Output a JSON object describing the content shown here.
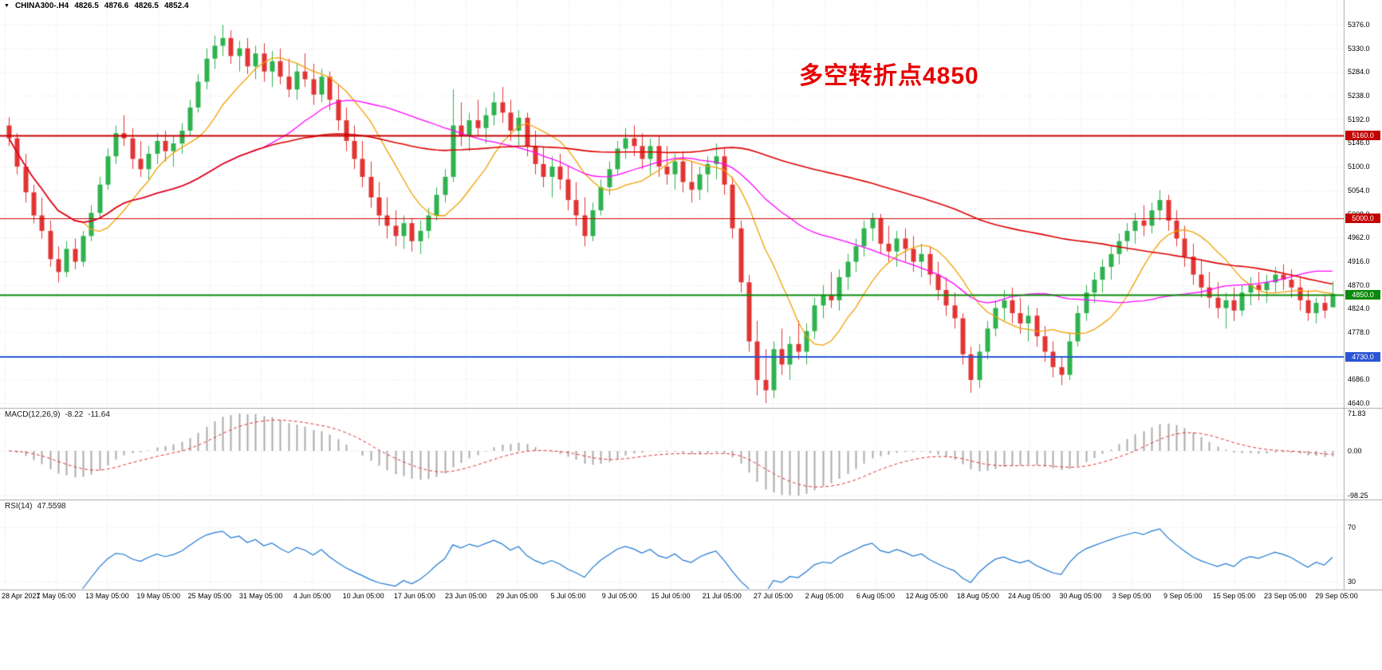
{
  "symbol_bar": {
    "icon": "▼",
    "symbol": "CHINA300-.H4",
    "open": "4826.5",
    "high": "4876.6",
    "low": "4826.5",
    "close": "4852.4"
  },
  "annotation": {
    "text": "多空转折点4850",
    "color": "#e60000"
  },
  "panes": {
    "macd": {
      "label": "MACD(12,26,9)",
      "value_main": "-8.22",
      "value_signal": "-11.64",
      "axis": [
        "71.83",
        "0.00",
        "-98.25"
      ]
    },
    "rsi": {
      "label": "RSI(14)",
      "value": "47.5598",
      "axis": [
        "70",
        "30"
      ],
      "levels": [
        70,
        30
      ]
    }
  },
  "price_axis": {
    "labels": [
      "5376.0",
      "5330.0",
      "5284.0",
      "5238.0",
      "5192.0",
      "5146.0",
      "5100.0",
      "5054.0",
      "5008.0",
      "4962.0",
      "4916.0",
      "4870.0",
      "4824.0",
      "4778.0",
      "4732.0",
      "4686.0",
      "4640.0"
    ]
  },
  "hlines": [
    {
      "price": 5160.0,
      "label": "5160.0",
      "color": "#c40000",
      "width": 2
    },
    {
      "price": 5000.0,
      "label": "5000.0",
      "color": "#c40000",
      "width": 1
    },
    {
      "price": 4850.0,
      "label": "4850.0",
      "color": "#0a8a0a",
      "width": 2
    },
    {
      "price": 4730.0,
      "label": "4730.0",
      "color": "#2b55d4",
      "width": 2
    }
  ],
  "time_axis": {
    "labels": [
      "28 Apr 2021",
      "7 May 05:00",
      "13 May 05:00",
      "19 May 05:00",
      "25 May 05:00",
      "31 May 05:00",
      "4 Jun 05:00",
      "10 Jun 05:00",
      "17 Jun 05:00",
      "23 Jun 05:00",
      "29 Jun 05:00",
      "5 Jul 05:00",
      "9 Jul 05:00",
      "15 Jul 05:00",
      "21 Jul 05:00",
      "27 Jul 05:00",
      "2 Aug 05:00",
      "6 Aug 05:00",
      "12 Aug 05:00",
      "18 Aug 05:00",
      "24 Aug 05:00",
      "30 Aug 05:00",
      "3 Sep 05:00",
      "9 Sep 05:00",
      "15 Sep 05:00",
      "23 Sep 05:00",
      "29 Sep 05:00"
    ]
  },
  "colors": {
    "up_candle": "#2eb24e",
    "down_candle": "#e23434",
    "ma_fast": "#f0a000",
    "ma_mid": "#ff00ff",
    "ma_slow": "#dc0000",
    "macd_histogram": "#ababab",
    "macd_signal": "#e03030",
    "rsi_line": "#1e78d2",
    "grid": "#e3e3e3",
    "separator": "#a9a9a9"
  },
  "chart_data": {
    "type": "candlestick",
    "symbol": "CHINA300-",
    "timeframe": "H4",
    "title": "CHINA300-.H4 4826.5 4876.6 4826.5 4852.4",
    "x_range": [
      "28 Apr 2021",
      "29 Sep 2021"
    ],
    "ylim": [
      4640,
      5376
    ],
    "price_step": 46,
    "moving_averages": [
      {
        "period": 10,
        "color": "#f0a000"
      },
      {
        "period": 30,
        "color": "#ff00ff"
      },
      {
        "period": 80,
        "color": "#dc0000"
      }
    ],
    "indicators": {
      "macd": {
        "fast": 12,
        "slow": 26,
        "signal": 9,
        "current_main": -8.22,
        "current_signal": -11.64,
        "axis_max": 71.83,
        "axis_min": -98.25
      },
      "rsi": {
        "period": 14,
        "current": 47.5598,
        "levels": [
          70,
          30
        ]
      }
    },
    "ohlc": [
      [
        5180,
        5196,
        5140,
        5155
      ],
      [
        5155,
        5165,
        5085,
        5100
      ],
      [
        5100,
        5125,
        5030,
        5050
      ],
      [
        5050,
        5065,
        4990,
        5005
      ],
      [
        5005,
        5040,
        4960,
        4975
      ],
      [
        4975,
        4995,
        4905,
        4920
      ],
      [
        4920,
        4945,
        4875,
        4895
      ],
      [
        4895,
        4955,
        4885,
        4940
      ],
      [
        4940,
        4960,
        4900,
        4915
      ],
      [
        4915,
        4975,
        4905,
        4965
      ],
      [
        4965,
        5025,
        4955,
        5010
      ],
      [
        5010,
        5080,
        5000,
        5065
      ],
      [
        5065,
        5135,
        5055,
        5120
      ],
      [
        5120,
        5180,
        5105,
        5165
      ],
      [
        5165,
        5200,
        5140,
        5155
      ],
      [
        5155,
        5175,
        5095,
        5115
      ],
      [
        5115,
        5150,
        5080,
        5095
      ],
      [
        5095,
        5140,
        5075,
        5125
      ],
      [
        5125,
        5165,
        5105,
        5150
      ],
      [
        5150,
        5170,
        5110,
        5130
      ],
      [
        5130,
        5160,
        5100,
        5145
      ],
      [
        5145,
        5185,
        5125,
        5170
      ],
      [
        5170,
        5230,
        5160,
        5215
      ],
      [
        5215,
        5280,
        5205,
        5265
      ],
      [
        5265,
        5330,
        5250,
        5310
      ],
      [
        5310,
        5355,
        5290,
        5335
      ],
      [
        5335,
        5376,
        5315,
        5350
      ],
      [
        5350,
        5365,
        5300,
        5315
      ],
      [
        5315,
        5345,
        5285,
        5330
      ],
      [
        5330,
        5350,
        5280,
        5295
      ],
      [
        5295,
        5335,
        5270,
        5320
      ],
      [
        5320,
        5340,
        5265,
        5285
      ],
      [
        5285,
        5325,
        5255,
        5305
      ],
      [
        5305,
        5330,
        5260,
        5275
      ],
      [
        5275,
        5310,
        5235,
        5250
      ],
      [
        5250,
        5300,
        5230,
        5285
      ],
      [
        5285,
        5320,
        5255,
        5270
      ],
      [
        5270,
        5300,
        5220,
        5240
      ],
      [
        5240,
        5290,
        5225,
        5275
      ],
      [
        5275,
        5285,
        5210,
        5230
      ],
      [
        5230,
        5260,
        5170,
        5190
      ],
      [
        5190,
        5215,
        5130,
        5150
      ],
      [
        5150,
        5180,
        5095,
        5115
      ],
      [
        5115,
        5150,
        5060,
        5080
      ],
      [
        5080,
        5110,
        5020,
        5040
      ],
      [
        5040,
        5070,
        4985,
        5005
      ],
      [
        5005,
        5040,
        4960,
        4985
      ],
      [
        4985,
        5015,
        4945,
        4965
      ],
      [
        4965,
        5005,
        4940,
        4990
      ],
      [
        4990,
        5000,
        4935,
        4955
      ],
      [
        4955,
        4995,
        4930,
        4975
      ],
      [
        4975,
        5020,
        4960,
        5005
      ],
      [
        5005,
        5060,
        4995,
        5045
      ],
      [
        5045,
        5095,
        5030,
        5080
      ],
      [
        5080,
        5250,
        5070,
        5180
      ],
      [
        5180,
        5225,
        5140,
        5160
      ],
      [
        5160,
        5205,
        5130,
        5190
      ],
      [
        5190,
        5230,
        5160,
        5175
      ],
      [
        5175,
        5215,
        5145,
        5200
      ],
      [
        5200,
        5245,
        5180,
        5225
      ],
      [
        5225,
        5255,
        5185,
        5205
      ],
      [
        5205,
        5230,
        5150,
        5170
      ],
      [
        5170,
        5210,
        5140,
        5195
      ],
      [
        5195,
        5205,
        5120,
        5140
      ],
      [
        5140,
        5170,
        5085,
        5105
      ],
      [
        5105,
        5140,
        5060,
        5080
      ],
      [
        5080,
        5120,
        5040,
        5100
      ],
      [
        5100,
        5125,
        5055,
        5075
      ],
      [
        5075,
        5100,
        5015,
        5035
      ],
      [
        5035,
        5070,
        4985,
        5005
      ],
      [
        5005,
        5040,
        4945,
        4965
      ],
      [
        4965,
        5030,
        4955,
        5015
      ],
      [
        5015,
        5075,
        5005,
        5060
      ],
      [
        5060,
        5110,
        5045,
        5095
      ],
      [
        5095,
        5150,
        5085,
        5135
      ],
      [
        5135,
        5175,
        5115,
        5155
      ],
      [
        5155,
        5180,
        5120,
        5140
      ],
      [
        5140,
        5165,
        5095,
        5115
      ],
      [
        5115,
        5155,
        5085,
        5140
      ],
      [
        5140,
        5160,
        5080,
        5100
      ],
      [
        5100,
        5140,
        5065,
        5085
      ],
      [
        5085,
        5125,
        5055,
        5110
      ],
      [
        5110,
        5130,
        5050,
        5070
      ],
      [
        5070,
        5110,
        5030,
        5055
      ],
      [
        5055,
        5100,
        5035,
        5085
      ],
      [
        5085,
        5120,
        5050,
        5105
      ],
      [
        5105,
        5145,
        5075,
        5120
      ],
      [
        5120,
        5135,
        5045,
        5065
      ],
      [
        5065,
        5080,
        4960,
        4980
      ],
      [
        4980,
        4995,
        4855,
        4875
      ],
      [
        4875,
        4890,
        4740,
        4760
      ],
      [
        4760,
        4800,
        4655,
        4685
      ],
      [
        4685,
        4745,
        4640,
        4665
      ],
      [
        4665,
        4760,
        4650,
        4745
      ],
      [
        4745,
        4785,
        4695,
        4715
      ],
      [
        4715,
        4770,
        4685,
        4755
      ],
      [
        4755,
        4800,
        4725,
        4740
      ],
      [
        4740,
        4795,
        4715,
        4780
      ],
      [
        4780,
        4845,
        4765,
        4830
      ],
      [
        4830,
        4870,
        4805,
        4850
      ],
      [
        4850,
        4895,
        4825,
        4840
      ],
      [
        4840,
        4900,
        4820,
        4885
      ],
      [
        4885,
        4930,
        4860,
        4915
      ],
      [
        4915,
        4960,
        4895,
        4945
      ],
      [
        4945,
        4995,
        4925,
        4980
      ],
      [
        4980,
        5010,
        4955,
        5000
      ],
      [
        5000,
        5008,
        4930,
        4950
      ],
      [
        4950,
        4985,
        4915,
        4935
      ],
      [
        4935,
        4975,
        4905,
        4960
      ],
      [
        4960,
        4980,
        4915,
        4940
      ],
      [
        4940,
        4965,
        4895,
        4915
      ],
      [
        4915,
        4950,
        4885,
        4930
      ],
      [
        4930,
        4945,
        4870,
        4890
      ],
      [
        4890,
        4915,
        4840,
        4860
      ],
      [
        4860,
        4885,
        4810,
        4830
      ],
      [
        4830,
        4855,
        4785,
        4805
      ],
      [
        4805,
        4815,
        4715,
        4735
      ],
      [
        4735,
        4750,
        4660,
        4685
      ],
      [
        4685,
        4755,
        4670,
        4740
      ],
      [
        4740,
        4800,
        4725,
        4785
      ],
      [
        4785,
        4840,
        4770,
        4825
      ],
      [
        4825,
        4860,
        4800,
        4840
      ],
      [
        4840,
        4865,
        4795,
        4815
      ],
      [
        4815,
        4845,
        4775,
        4795
      ],
      [
        4795,
        4830,
        4760,
        4810
      ],
      [
        4810,
        4825,
        4750,
        4770
      ],
      [
        4770,
        4790,
        4720,
        4740
      ],
      [
        4740,
        4760,
        4690,
        4710
      ],
      [
        4710,
        4730,
        4675,
        4695
      ],
      [
        4695,
        4775,
        4685,
        4760
      ],
      [
        4760,
        4830,
        4750,
        4815
      ],
      [
        4815,
        4870,
        4800,
        4855
      ],
      [
        4855,
        4895,
        4835,
        4880
      ],
      [
        4880,
        4920,
        4855,
        4905
      ],
      [
        4905,
        4945,
        4880,
        4930
      ],
      [
        4930,
        4970,
        4910,
        4955
      ],
      [
        4955,
        4990,
        4935,
        4975
      ],
      [
        4975,
        5010,
        4950,
        4995
      ],
      [
        4995,
        5025,
        4965,
        4985
      ],
      [
        4985,
        5030,
        4970,
        5015
      ],
      [
        5015,
        5054,
        4995,
        5035
      ],
      [
        5035,
        5045,
        4975,
        4995
      ],
      [
        4995,
        5015,
        4945,
        4960
      ],
      [
        4960,
        4985,
        4905,
        4925
      ],
      [
        4925,
        4950,
        4870,
        4890
      ],
      [
        4890,
        4920,
        4845,
        4865
      ],
      [
        4865,
        4895,
        4825,
        4845
      ],
      [
        4845,
        4875,
        4805,
        4825
      ],
      [
        4825,
        4855,
        4785,
        4840
      ],
      [
        4840,
        4865,
        4800,
        4820
      ],
      [
        4820,
        4870,
        4810,
        4855
      ],
      [
        4855,
        4885,
        4830,
        4870
      ],
      [
        4870,
        4895,
        4840,
        4860
      ],
      [
        4860,
        4890,
        4835,
        4875
      ],
      [
        4875,
        4905,
        4855,
        4890
      ],
      [
        4890,
        4910,
        4860,
        4880
      ],
      [
        4880,
        4900,
        4845,
        4865
      ],
      [
        4865,
        4885,
        4820,
        4840
      ],
      [
        4840,
        4860,
        4800,
        4815
      ],
      [
        4815,
        4845,
        4795,
        4835
      ],
      [
        4835,
        4850,
        4805,
        4820
      ],
      [
        4826.5,
        4876.6,
        4826.5,
        4852.4
      ]
    ]
  }
}
